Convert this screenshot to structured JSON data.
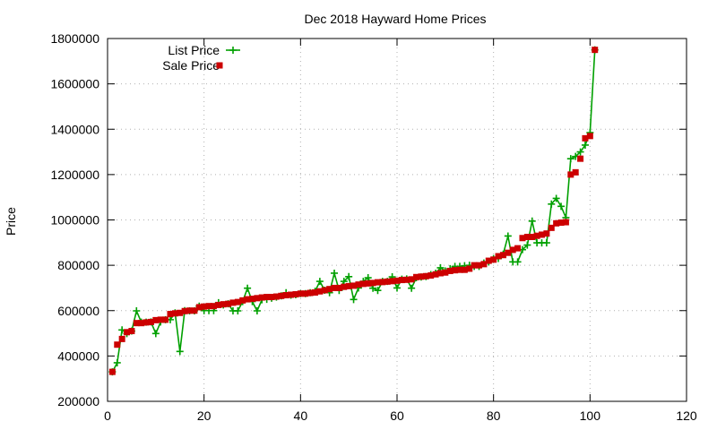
{
  "chart_data": {
    "type": "line",
    "title": "Dec 2018 Hayward Home Prices",
    "xlabel": "",
    "ylabel": "Price",
    "xlim": [
      0,
      120
    ],
    "ylim": [
      200000,
      1800000
    ],
    "xticks": [
      "0",
      "20",
      "40",
      "60",
      "80",
      "100",
      "120"
    ],
    "yticks": [
      "200000",
      "400000",
      "600000",
      "800000",
      "1000000",
      "1200000",
      "1400000",
      "1600000",
      "1800000"
    ],
    "grid": true,
    "legend_position": "top-left",
    "x": [
      1,
      2,
      3,
      4,
      5,
      6,
      7,
      8,
      9,
      10,
      11,
      12,
      13,
      14,
      15,
      16,
      17,
      18,
      19,
      20,
      21,
      22,
      23,
      24,
      25,
      26,
      27,
      28,
      29,
      30,
      31,
      32,
      33,
      34,
      35,
      36,
      37,
      38,
      39,
      40,
      41,
      42,
      43,
      44,
      45,
      46,
      47,
      48,
      49,
      50,
      51,
      52,
      53,
      54,
      55,
      56,
      57,
      58,
      59,
      60,
      61,
      62,
      63,
      64,
      65,
      66,
      67,
      68,
      69,
      70,
      71,
      72,
      73,
      74,
      75,
      76,
      77,
      78,
      79,
      80,
      81,
      82,
      83,
      84,
      85,
      86,
      87,
      88,
      89,
      90,
      91,
      92,
      93,
      94,
      95,
      96,
      97,
      98,
      99,
      100,
      101
    ],
    "series": [
      {
        "name": "List Price",
        "color": "#00a000",
        "style": "line-plus",
        "values": [
          330000,
          370000,
          515000,
          499000,
          510000,
          599000,
          549000,
          549000,
          550000,
          499000,
          550000,
          560000,
          560000,
          590000,
          420000,
          600000,
          599000,
          599000,
          620000,
          600000,
          600000,
          600000,
          635000,
          625000,
          630000,
          599000,
          599000,
          640000,
          699000,
          640000,
          599000,
          648000,
          650000,
          655000,
          660000,
          665000,
          679000,
          668000,
          670000,
          675000,
          675000,
          679000,
          685000,
          729000,
          690000,
          679000,
          765000,
          689000,
          729000,
          750000,
          649000,
          700000,
          729000,
          745000,
          699000,
          689000,
          729000,
          729000,
          749000,
          700000,
          739000,
          740000,
          699000,
          745000,
          748000,
          750000,
          759000,
          765000,
          789000,
          775000,
          785000,
          795000,
          795000,
          798000,
          800000,
          795000,
          795000,
          810000,
          815000,
          829000,
          830000,
          849000,
          929000,
          815000,
          815000,
          869000,
          889000,
          995000,
          899000,
          899000,
          899000,
          1070000,
          1095000,
          1060000,
          1010000,
          1270000,
          1280000,
          1300000,
          1330000,
          1385000,
          1750000
        ]
      },
      {
        "name": "Sale Price",
        "color": "#cc0000",
        "style": "square",
        "values": [
          330000,
          450000,
          475000,
          505000,
          510000,
          545000,
          545000,
          548000,
          550000,
          558000,
          560000,
          560000,
          585000,
          588000,
          590000,
          598000,
          600000,
          600000,
          615000,
          618000,
          620000,
          620000,
          625000,
          628000,
          630000,
          635000,
          638000,
          645000,
          650000,
          652000,
          655000,
          658000,
          660000,
          660000,
          662000,
          665000,
          668000,
          670000,
          672000,
          675000,
          675000,
          678000,
          680000,
          685000,
          690000,
          695000,
          700000,
          700000,
          705000,
          708000,
          710000,
          715000,
          718000,
          720000,
          722000,
          725000,
          726000,
          728000,
          730000,
          732000,
          735000,
          736000,
          738000,
          748000,
          750000,
          752000,
          755000,
          760000,
          765000,
          768000,
          775000,
          778000,
          780000,
          780000,
          785000,
          800000,
          800000,
          805000,
          820000,
          825000,
          840000,
          845000,
          855000,
          868000,
          875000,
          920000,
          925000,
          925000,
          930000,
          935000,
          940000,
          965000,
          985000,
          988000,
          990000,
          1200000,
          1210000,
          1270000,
          1360000,
          1370000,
          1750000
        ]
      }
    ]
  }
}
